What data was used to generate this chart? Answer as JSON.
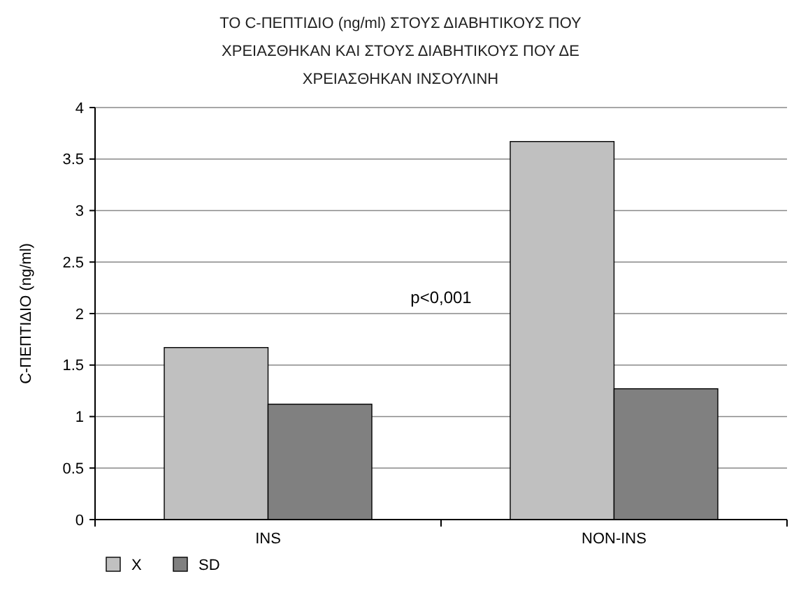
{
  "chart_data": {
    "type": "bar",
    "title": "ΤΟ C-ΠΕΠΤΙΔΙΟ (ng/ml) ΣΤΟΥΣ ΔΙΑΒΗΤΙΚΟΥΣ ΠΟΥ\nΧΡΕΙΑΣΘΗΚΑΝ ΚΑΙ ΣΤΟΥΣ ΔΙΑΒΗΤΙΚΟΥΣ ΠΟΥ ΔΕ\nΧΡΕΙΑΣΘΗΚΑΝ ΙΝΣΟΥΛΙΝΗ",
    "ylabel": "C-ΠΕΠΤΙΔΙΟ (ng/ml)",
    "categories": [
      "INS",
      "NON-INS"
    ],
    "series": [
      {
        "name": "X",
        "color": "#c0c0c0",
        "values": [
          1.67,
          3.67
        ]
      },
      {
        "name": "SD",
        "color": "#808080",
        "values": [
          1.12,
          1.27
        ]
      }
    ],
    "ylim": [
      0,
      4
    ],
    "yticks": [
      0,
      0.5,
      1,
      1.5,
      2,
      2.5,
      3,
      3.5,
      4
    ],
    "grid": "y",
    "legend": "bottom left",
    "annotations": [
      "p<0,001"
    ]
  }
}
